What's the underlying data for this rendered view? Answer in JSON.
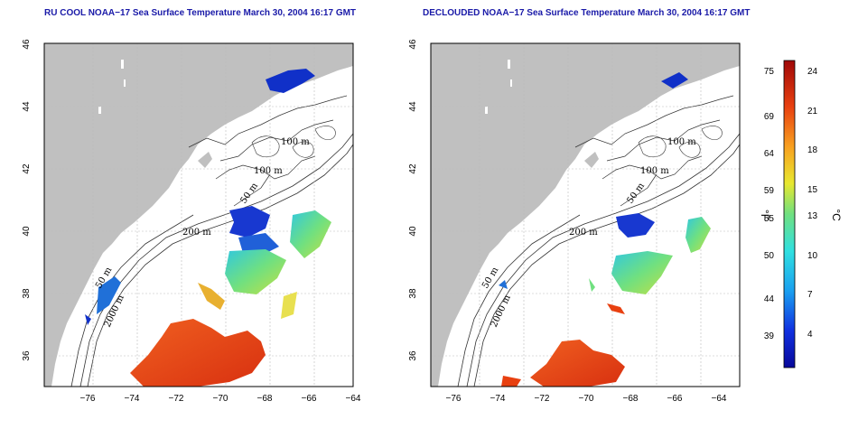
{
  "maps": [
    {
      "title": "RU COOL NOAA−17 Sea Surface Temperature March 30, 2004 16:17 GMT",
      "contour_labels": [
        "100 m",
        "100 m",
        "50 m",
        "200 m",
        "50 m",
        "2000 m"
      ]
    },
    {
      "title": "DECLOUDED NOAA−17 Sea Surface Temperature March 30, 2004 16:17 GMT",
      "contour_labels": [
        "100 m",
        "100 m",
        "50 m",
        "200 m",
        "50 m",
        "2000 m"
      ]
    }
  ],
  "axes": {
    "x_ticks": [
      "−76",
      "−74",
      "−72",
      "−70",
      "−68",
      "−66",
      "−64"
    ],
    "y_ticks": [
      "36",
      "38",
      "40",
      "42",
      "44",
      "46"
    ]
  },
  "colorbar": {
    "fahrenheit_ticks": [
      "75",
      "69",
      "64",
      "59",
      "55",
      "50",
      "44",
      "39"
    ],
    "celsius_ticks": [
      "24",
      "21",
      "18",
      "15",
      "13",
      "10",
      "7",
      "4"
    ],
    "fahrenheit_label": "°F",
    "celsius_label": "°C"
  },
  "colors": {
    "land": "#c0c0c0",
    "cold": "#1030c8",
    "mid": "#60d090",
    "warm": "#e8501a",
    "title": "#1a1aa8"
  }
}
